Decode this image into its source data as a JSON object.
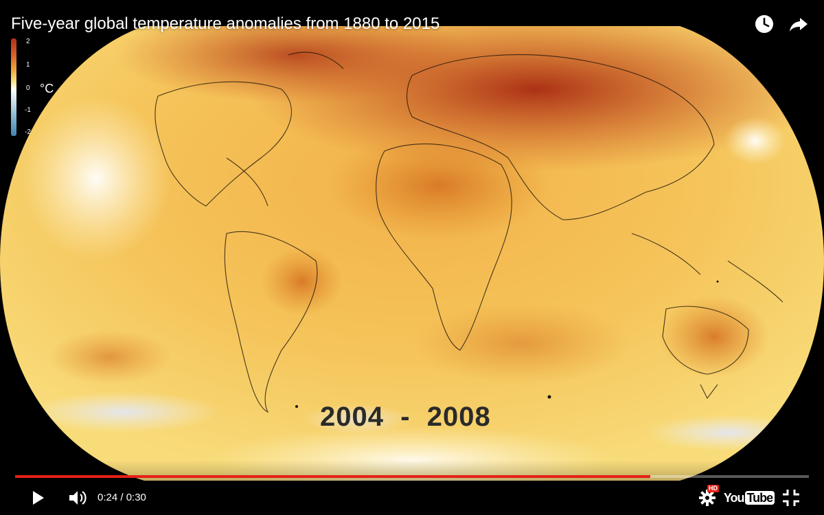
{
  "video": {
    "title": "Five-year global temperature anomalies from 1880 to 2015",
    "year_label": "2004  -  2008"
  },
  "legend": {
    "ticks": [
      "2",
      "1",
      "0",
      "-1",
      "-2"
    ],
    "unit": "°C"
  },
  "colors": {
    "accent": "#e62117",
    "warm_dark": "#a82a12",
    "warm": "#e08a2a",
    "neutral": "#ffffff",
    "cool": "#3f84b3"
  },
  "player": {
    "progress_fraction": 0.8,
    "time": "0:24 / 0:30",
    "hd_badge": "HD",
    "logo_you": "You",
    "logo_tube": "Tube"
  },
  "icons": {
    "watch_later": "clock-icon",
    "share": "share-arrow-icon",
    "play": "play-icon",
    "volume": "volume-icon",
    "settings": "gear-icon",
    "fullscreen": "fullscreen-icon"
  }
}
